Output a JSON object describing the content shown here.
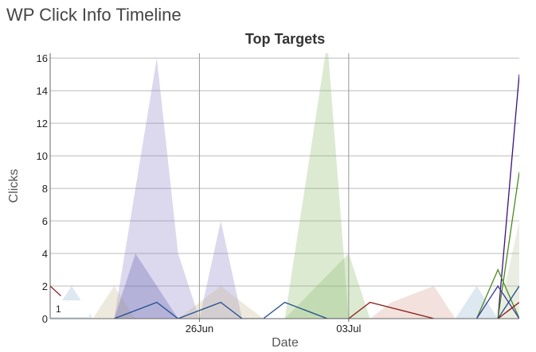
{
  "app": {
    "title": "WP Click Info Timeline"
  },
  "chart_data": {
    "type": "area",
    "title": "Top Targets",
    "xlabel": "Date",
    "ylabel": "Clicks",
    "ylim": [
      0,
      16.3
    ],
    "y_ticks": [
      0,
      2,
      4,
      6,
      8,
      10,
      12,
      14,
      16
    ],
    "x_range": [
      "2016-06-19",
      "2016-07-11"
    ],
    "x_ticks": [
      {
        "date": "2016-06-26",
        "label": "26Jun"
      },
      {
        "date": "2016-07-03",
        "label": "03Jul"
      }
    ],
    "grid": true,
    "legend": {
      "position": "bottom-left",
      "entries": [
        "1"
      ]
    },
    "series": [
      {
        "color": "#8a7fc8",
        "kind": "area",
        "points": [
          [
            "2016-06-22",
            0
          ],
          [
            "2016-06-24",
            16
          ],
          [
            "2016-06-25",
            4
          ],
          [
            "2016-06-26",
            0
          ],
          [
            "2016-06-27",
            6
          ],
          [
            "2016-06-28",
            0
          ]
        ]
      },
      {
        "color": "#8cb86a",
        "kind": "area",
        "points": [
          [
            "2016-06-30",
            0
          ],
          [
            "2016-07-02",
            17
          ],
          [
            "2016-07-03",
            0
          ]
        ]
      },
      {
        "color": "#8cb86a",
        "kind": "area",
        "points": [
          [
            "2016-06-30",
            0
          ],
          [
            "2016-07-03",
            4
          ],
          [
            "2016-07-04",
            0
          ]
        ]
      },
      {
        "color": "#c8b68f",
        "kind": "area",
        "points": [
          [
            "2016-06-21",
            0
          ],
          [
            "2016-06-22",
            2
          ],
          [
            "2016-06-23",
            0
          ]
        ]
      },
      {
        "color": "#c8b68f",
        "kind": "area",
        "points": [
          [
            "2016-06-25",
            0
          ],
          [
            "2016-06-27",
            2
          ],
          [
            "2016-06-29",
            0
          ]
        ]
      },
      {
        "color": "#8fb4cc",
        "kind": "area",
        "points": [
          [
            "2016-06-19",
            0
          ],
          [
            "2016-06-20",
            2
          ],
          [
            "2016-06-21",
            0
          ]
        ]
      },
      {
        "color": "#8fb4cc",
        "kind": "area",
        "points": [
          [
            "2016-07-08",
            0
          ],
          [
            "2016-07-09",
            2
          ],
          [
            "2016-07-10",
            0
          ]
        ]
      },
      {
        "color": "#d49a8c",
        "kind": "area",
        "points": [
          [
            "2016-07-04",
            0
          ],
          [
            "2016-07-05",
            1
          ],
          [
            "2016-07-07",
            2
          ],
          [
            "2016-07-08",
            0
          ]
        ]
      },
      {
        "color": "#b8c49c",
        "kind": "area",
        "points": [
          [
            "2016-07-10",
            0
          ],
          [
            "2016-07-11",
            6
          ],
          [
            "2016-07-11",
            0
          ]
        ]
      },
      {
        "color": "#5a5aa8",
        "kind": "area",
        "points": [
          [
            "2016-06-22",
            0
          ],
          [
            "2016-06-23",
            4
          ],
          [
            "2016-06-24",
            2
          ],
          [
            "2016-06-25",
            0
          ]
        ]
      },
      {
        "color": "#1f4f8f",
        "kind": "line",
        "points": [
          [
            "2016-06-22",
            0
          ],
          [
            "2016-06-24",
            1
          ],
          [
            "2016-06-25",
            0
          ],
          [
            "2016-06-27",
            1
          ],
          [
            "2016-06-28",
            0
          ],
          [
            "2016-06-29",
            0
          ],
          [
            "2016-06-30",
            1
          ],
          [
            "2016-07-02",
            0
          ],
          [
            "2016-07-03",
            0
          ]
        ]
      },
      {
        "color": "#8b1a1a",
        "kind": "line",
        "points": [
          [
            "2016-06-19",
            2
          ],
          [
            "2016-06-19.5",
            1.4
          ]
        ]
      },
      {
        "color": "#8b1a1a",
        "kind": "line",
        "points": [
          [
            "2016-07-03",
            0
          ],
          [
            "2016-07-04",
            1
          ],
          [
            "2016-07-07",
            0
          ]
        ]
      },
      {
        "color": "#3d0f7a",
        "kind": "line",
        "points": [
          [
            "2016-07-10",
            0
          ],
          [
            "2016-07-11",
            15
          ]
        ]
      },
      {
        "color": "#4a8a1e",
        "kind": "line",
        "points": [
          [
            "2016-07-10",
            0
          ],
          [
            "2016-07-11",
            9
          ]
        ]
      },
      {
        "color": "#4a8a1e",
        "kind": "line",
        "points": [
          [
            "2016-07-09",
            0
          ],
          [
            "2016-07-10",
            3
          ],
          [
            "2016-07-11",
            0
          ]
        ]
      },
      {
        "color": "#3a3a9a",
        "kind": "line",
        "points": [
          [
            "2016-07-09",
            0
          ],
          [
            "2016-07-10",
            2
          ],
          [
            "2016-07-11",
            0
          ]
        ]
      },
      {
        "color": "#1f4f8f",
        "kind": "line",
        "points": [
          [
            "2016-07-10",
            0
          ],
          [
            "2016-07-11",
            2
          ]
        ]
      },
      {
        "color": "#8b1a1a",
        "kind": "line",
        "points": [
          [
            "2016-07-10",
            0
          ],
          [
            "2016-07-11",
            1
          ]
        ]
      }
    ]
  }
}
